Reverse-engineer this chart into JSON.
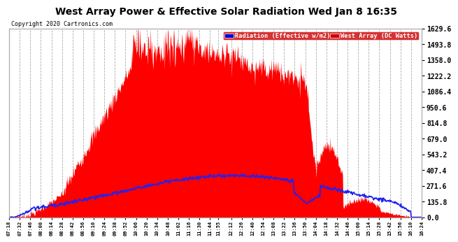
{
  "title": "West Array Power & Effective Solar Radiation Wed Jan 8 16:35",
  "copyright": "Copyright 2020 Cartronics.com",
  "legend_radiation": "Radiation (Effective w/m2)",
  "legend_west": "West Array (DC Watts)",
  "legend_radiation_color": "#0000cc",
  "legend_west_color": "#cc0000",
  "plot_bg": "#ffffff",
  "fig_bg": "#ffffff",
  "grid_color": "#aaaaaa",
  "red_color": "#ff0000",
  "blue_color": "#2222ee",
  "yticks": [
    0.0,
    135.8,
    271.6,
    407.4,
    543.2,
    679.0,
    814.8,
    950.6,
    1086.4,
    1222.2,
    1358.0,
    1493.8,
    1629.6
  ],
  "ymax": 1629.6,
  "ymin": 0.0,
  "x_tick_labels": [
    "07:18",
    "07:32",
    "07:46",
    "08:00",
    "08:14",
    "08:28",
    "08:42",
    "08:56",
    "09:10",
    "09:24",
    "09:38",
    "09:52",
    "10:06",
    "10:20",
    "10:34",
    "10:48",
    "11:02",
    "11:16",
    "11:30",
    "11:44",
    "11:55",
    "12:12",
    "12:26",
    "12:40",
    "12:54",
    "13:08",
    "13:22",
    "13:36",
    "13:50",
    "14:04",
    "14:18",
    "14:32",
    "14:46",
    "15:00",
    "15:14",
    "15:28",
    "15:42",
    "15:56",
    "16:10",
    "16:24"
  ]
}
